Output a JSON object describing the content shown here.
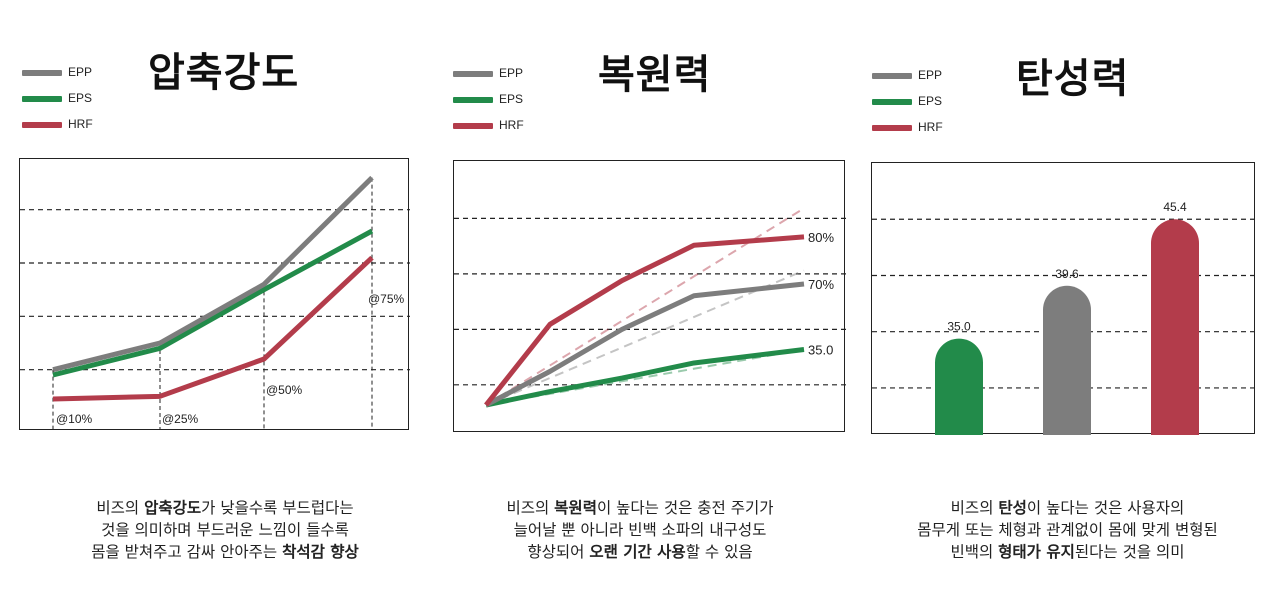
{
  "colors": {
    "EPP": "#7d7d7d",
    "EPS": "#228b4a",
    "HRF": "#b33c4b"
  },
  "legend": [
    {
      "key": "EPP",
      "label": "EPP"
    },
    {
      "key": "EPS",
      "label": "EPS"
    },
    {
      "key": "HRF",
      "label": "HRF"
    }
  ],
  "chart_data": [
    {
      "type": "line",
      "title": "압축강도",
      "x": [
        10,
        25,
        50,
        75
      ],
      "x_labels": [
        "@10%",
        "@25%",
        "@50%",
        "@75%"
      ],
      "series": [
        {
          "name": "EPP",
          "values": [
            1.0,
            1.5,
            2.6,
            4.6
          ]
        },
        {
          "name": "EPS",
          "values": [
            0.9,
            1.4,
            2.5,
            3.6
          ]
        },
        {
          "name": "HRF",
          "values": [
            0.45,
            0.5,
            1.2,
            3.1
          ]
        }
      ],
      "ylim": [
        0,
        4.8
      ],
      "gridlines_y": [
        1.0,
        2.0,
        3.0,
        4.0
      ],
      "xlabel": "",
      "ylabel": ""
    },
    {
      "type": "line",
      "title": "복원력",
      "x": [
        0,
        1,
        2,
        3,
        4
      ],
      "series": [
        {
          "name": "EPP",
          "values": [
            0,
            1.0,
            2.25,
            3.25,
            3.6
          ]
        },
        {
          "name": "EPS",
          "values": [
            0,
            0.4,
            0.8,
            1.25,
            1.65
          ]
        },
        {
          "name": "HRF",
          "values": [
            0,
            2.4,
            3.7,
            4.75,
            5.0
          ]
        }
      ],
      "trend_lines": [
        {
          "name": "EPP",
          "from": [
            0,
            0
          ],
          "to": [
            4.0,
            4.0
          ]
        },
        {
          "name": "EPS",
          "from": [
            0,
            0
          ],
          "to": [
            4.0,
            1.65
          ]
        },
        {
          "name": "HRF",
          "from": [
            0,
            0
          ],
          "to": [
            4.0,
            5.85
          ]
        }
      ],
      "end_labels": [
        {
          "series": "HRF",
          "text": "80%"
        },
        {
          "series": "EPP",
          "text": "70%"
        },
        {
          "series": "EPS",
          "text": "35.0"
        }
      ],
      "ylim": [
        -0.3,
        6.6
      ],
      "gridlines_y": [
        0.6,
        2.25,
        3.9,
        5.55
      ],
      "xlabel": "",
      "ylabel": ""
    },
    {
      "type": "bar",
      "title": "탄성력",
      "categories": [
        "EPS",
        "EPP",
        "HRF"
      ],
      "values": [
        35.0,
        39.6,
        45.4
      ],
      "value_labels": [
        "35.0",
        "39.6",
        "45.4"
      ],
      "ylim": [
        26.6,
        50.3
      ],
      "gridlines_y": [
        30.7,
        35.6,
        40.5,
        45.4
      ],
      "xlabel": "",
      "ylabel": ""
    }
  ],
  "descriptions": [
    {
      "lines": [
        [
          {
            "t": "비즈의 ",
            "b": false
          },
          {
            "t": "압축강도",
            "b": true
          },
          {
            "t": "가 낮을수록 부드럽다는",
            "b": false
          }
        ],
        [
          {
            "t": "것을 의미하며 부드러운 느낌이 들수록",
            "b": false
          }
        ],
        [
          {
            "t": "몸을 받쳐주고 감싸 안아주는 ",
            "b": false
          },
          {
            "t": "착석감 향상",
            "b": true
          }
        ]
      ]
    },
    {
      "lines": [
        [
          {
            "t": "비즈의 ",
            "b": false
          },
          {
            "t": "복원력",
            "b": true
          },
          {
            "t": "이 높다는 것은 충전 주기가",
            "b": false
          }
        ],
        [
          {
            "t": "늘어날 뿐 아니라 빈백 소파의 내구성도",
            "b": false
          }
        ],
        [
          {
            "t": "향상되어 ",
            "b": false
          },
          {
            "t": "오랜 기간 사용",
            "b": true
          },
          {
            "t": "할 수 있음",
            "b": false
          }
        ]
      ]
    },
    {
      "lines": [
        [
          {
            "t": "비즈의 ",
            "b": false
          },
          {
            "t": "탄성",
            "b": true
          },
          {
            "t": "이 높다는 것은 사용자의",
            "b": false
          }
        ],
        [
          {
            "t": "몸무게 또는 체형과 관계없이 몸에 맞게 변형된",
            "b": false
          }
        ],
        [
          {
            "t": "빈백의 ",
            "b": false
          },
          {
            "t": "형태가 유지",
            "b": true
          },
          {
            "t": "된다는 것을 의미",
            "b": false
          }
        ]
      ]
    }
  ]
}
